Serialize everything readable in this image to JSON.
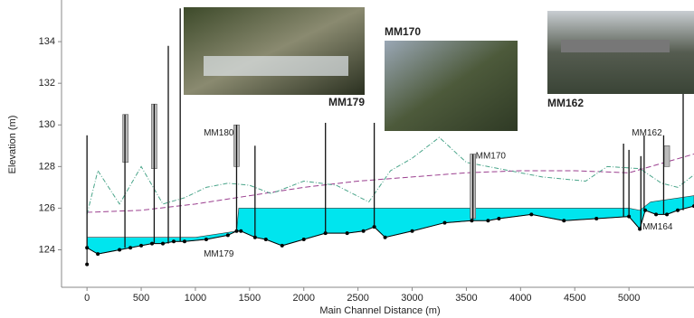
{
  "chart_data": {
    "type": "profile",
    "xlabel": "Main Channel Distance (m)",
    "ylabel": "Elevation (m)",
    "xlim": [
      -235,
      5600
    ],
    "ylim": [
      122.2,
      136
    ],
    "xticks": [
      0,
      500,
      1000,
      1500,
      2000,
      2500,
      3000,
      3500,
      4000,
      4500,
      5000
    ],
    "yticks": [
      124,
      126,
      128,
      130,
      132,
      134
    ],
    "series": [
      {
        "role": "water",
        "color": "#00e5ee",
        "x": [
          0,
          1000,
          1380,
          1400,
          5000,
          5100,
          5200,
          5600
        ],
        "values": [
          124.6,
          124.6,
          124.9,
          126.0,
          126.0,
          125.9,
          126.3,
          126.6
        ]
      },
      {
        "role": "bed",
        "color": "#000000",
        "markers": true,
        "x": [
          0,
          0,
          100,
          300,
          400,
          500,
          600,
          700,
          800,
          900,
          1100,
          1300,
          1380,
          1420,
          1550,
          1650,
          1800,
          2000,
          2200,
          2400,
          2550,
          2650,
          2750,
          3000,
          3300,
          3550,
          3700,
          3800,
          4100,
          4400,
          4700,
          5000,
          5100,
          5150,
          5250,
          5350,
          5450,
          5600
        ],
        "values": [
          123.3,
          124.1,
          123.8,
          124.0,
          124.1,
          124.2,
          124.3,
          124.3,
          124.4,
          124.4,
          124.5,
          124.7,
          124.9,
          124.9,
          124.6,
          124.5,
          124.2,
          124.5,
          124.8,
          124.8,
          124.9,
          125.1,
          124.6,
          124.9,
          125.3,
          125.4,
          125.4,
          125.5,
          125.7,
          125.4,
          125.5,
          125.6,
          125.0,
          125.9,
          125.7,
          125.7,
          125.9,
          126.1
        ]
      },
      {
        "role": "bank",
        "color": "#9b3f8f",
        "dash": "6 3",
        "x": [
          0,
          500,
          1000,
          1500,
          2000,
          2500,
          3000,
          3500,
          4000,
          4500,
          5000,
          5600
        ],
        "values": [
          125.8,
          125.9,
          126.2,
          126.6,
          127.0,
          127.3,
          127.5,
          127.7,
          127.8,
          127.8,
          127.7,
          128.6
        ]
      },
      {
        "role": "bank",
        "color": "#4aa58a",
        "dash": "5 2 1 2",
        "x": [
          0,
          100,
          300,
          500,
          700,
          900,
          1100,
          1300,
          1500,
          1700,
          2000,
          2300,
          2600,
          2800,
          3000,
          3250,
          3500,
          3800,
          4200,
          4600,
          4800,
          5100,
          5300,
          5450,
          5600
        ],
        "values": [
          125.7,
          127.8,
          126.2,
          128.0,
          126.2,
          126.5,
          127.0,
          127.2,
          127.1,
          126.7,
          127.3,
          127.1,
          126.3,
          127.8,
          128.4,
          129.4,
          128.2,
          127.9,
          127.5,
          127.3,
          128.0,
          127.9,
          127.2,
          127.0,
          127.6
        ]
      }
    ],
    "structures": [
      {
        "x": 0,
        "bottom": 124.1,
        "top": 129.5
      },
      {
        "x": 350,
        "bottom": 124.1,
        "top": 130.5
      },
      {
        "x": 620,
        "bottom": 124.3,
        "top": 131.0
      },
      {
        "x": 750,
        "bottom": 124.3,
        "top": 133.8
      },
      {
        "x": 860,
        "bottom": 124.4,
        "top": 135.6
      },
      {
        "x": 1380,
        "bottom": 124.9,
        "top": 130.0
      },
      {
        "x": 1550,
        "bottom": 124.6,
        "top": 129.0
      },
      {
        "x": 2200,
        "bottom": 124.8,
        "top": 130.1
      },
      {
        "x": 2650,
        "bottom": 125.1,
        "top": 130.1
      },
      {
        "x": 3560,
        "bottom": 125.4,
        "top": 128.6
      },
      {
        "x": 4950,
        "bottom": 125.6,
        "top": 129.1
      },
      {
        "x": 5000,
        "bottom": 125.6,
        "top": 128.8
      },
      {
        "x": 5110,
        "bottom": 125.0,
        "top": 128.5
      },
      {
        "x": 5140,
        "bottom": 125.9,
        "top": 129.5
      },
      {
        "x": 5320,
        "bottom": 125.7,
        "top": 129.5
      },
      {
        "x": 5500,
        "bottom": 125.9,
        "top": 134.0
      }
    ],
    "boxes": [
      {
        "x": 355,
        "low": 128.2,
        "high": 130.5
      },
      {
        "x": 620,
        "low": 127.9,
        "high": 131.0
      },
      {
        "x": 1380,
        "low": 128.0,
        "high": 130.0
      },
      {
        "x": 3560,
        "low": 125.5,
        "high": 128.6
      },
      {
        "x": 5350,
        "low": 128.0,
        "high": 129.0
      }
    ],
    "annotations": [
      {
        "text": "MM180",
        "x": 1380,
        "y": 129.6,
        "side": "left"
      },
      {
        "text": "MM179",
        "x": 1380,
        "y": 123.8,
        "side": "left"
      },
      {
        "text": "MM170",
        "x": 3560,
        "y": 128.5,
        "side": "right"
      },
      {
        "text": "MM164",
        "x": 5100,
        "y": 125.1,
        "side": "right"
      },
      {
        "text": "MM162",
        "x": 5330,
        "y": 129.6,
        "side": "left"
      }
    ],
    "photos": [
      {
        "caption": "MM179"
      },
      {
        "caption": "MM170"
      },
      {
        "caption": "MM162"
      }
    ]
  }
}
